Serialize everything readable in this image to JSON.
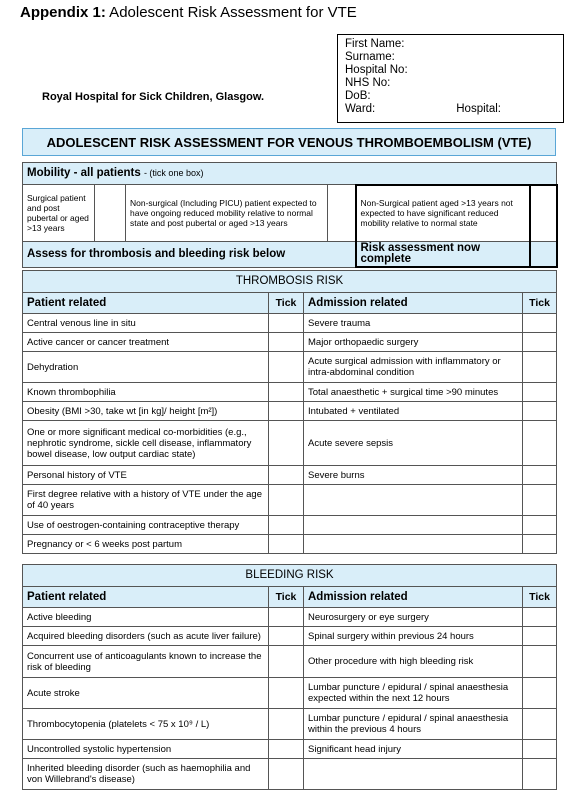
{
  "title": {
    "bold": "Appendix 1:",
    "rest": " Adolescent Risk Assessment for VTE"
  },
  "patient_box": {
    "first_name": "First Name:",
    "surname": "Surname:",
    "hospital_no": "Hospital No:",
    "nhs_no": "NHS No:",
    "dob": "DoB:",
    "ward": "Ward:",
    "hospital": "Hospital:"
  },
  "hospital_name": "Royal Hospital for Sick Children, Glasgow.",
  "main_header": "ADOLESCENT RISK ASSESSMENT FOR VENOUS THROMBOEMBOLISM (VTE)",
  "mobility": {
    "title": "Mobility - all patients",
    "hint": "- (tick one box)",
    "options": [
      "Surgical patient and post pubertal or aged >13 years",
      "Non-surgical (Including PICU) patient expected to have ongoing reduced mobility relative to normal state and post pubertal or aged >13 years",
      "Non-Surgical patient aged >13 years not expected to have significant reduced mobility relative to normal state"
    ],
    "assess": "Assess for thrombosis and bleeding risk below",
    "complete": "Risk assessment now complete"
  },
  "thrombosis": {
    "title": "THROMBOSIS RISK",
    "col_patient": "Patient related",
    "col_tick": "Tick",
    "col_admission": "Admission related",
    "rows": [
      {
        "patient": "Central venous line in situ",
        "admission": "Severe trauma",
        "h": 19
      },
      {
        "patient": "Active cancer or cancer treatment",
        "admission": "Major orthopaedic surgery",
        "h": 19
      },
      {
        "patient": "Dehydration",
        "admission": "Acute surgical admission with inflammatory or intra-abdominal condition",
        "h": 31
      },
      {
        "patient": "Known thrombophilia",
        "admission": "Total anaesthetic + surgical time >90 minutes",
        "h": 19
      },
      {
        "patient": "Obesity (BMI >30, take wt [in kg]/ height [m²])",
        "admission": "Intubated + ventilated",
        "h": 19
      },
      {
        "patient": "One or more significant medical co-morbidities (e.g., nephrotic syndrome, sickle cell disease, inflammatory bowel disease, low output cardiac state)",
        "admission": "Acute severe sepsis",
        "h": 45
      },
      {
        "patient": "Personal history of VTE",
        "admission": "Severe burns",
        "h": 19
      },
      {
        "patient": "First degree relative with a history of VTE under the age of 40 years",
        "admission": "",
        "h": 31
      },
      {
        "patient": "Use of oestrogen-containing contraceptive therapy",
        "admission": "",
        "h": 19
      },
      {
        "patient": "Pregnancy or < 6 weeks post partum",
        "admission": "",
        "h": 19
      }
    ]
  },
  "bleeding": {
    "title": "BLEEDING RISK",
    "col_patient": "Patient related",
    "col_tick": "Tick",
    "col_admission": "Admission related",
    "rows": [
      {
        "patient": "Active bleeding",
        "admission": "Neurosurgery or eye surgery",
        "h": 19
      },
      {
        "patient": "Acquired bleeding disorders (such as acute liver failure)",
        "admission": "Spinal surgery within previous 24 hours",
        "h": 19
      },
      {
        "patient": "Concurrent use of anticoagulants known to increase the risk of bleeding",
        "admission": "Other procedure with high bleeding risk",
        "h": 32
      },
      {
        "patient": "Acute stroke",
        "admission": "Lumbar puncture / epidural / spinal anaesthesia expected within the next 12 hours",
        "h": 31
      },
      {
        "patient": "Thrombocytopenia (platelets < 75 x 10⁹ / L)",
        "admission": "Lumbar puncture / epidural / spinal anaesthesia within the previous 4 hours",
        "h": 31
      },
      {
        "patient": "Uncontrolled systolic hypertension",
        "admission": "Significant head injury",
        "h": 19
      },
      {
        "patient": "Inherited bleeding disorder (such as haemophilia and von Willebrand's disease)",
        "admission": "",
        "h": 31
      }
    ]
  }
}
